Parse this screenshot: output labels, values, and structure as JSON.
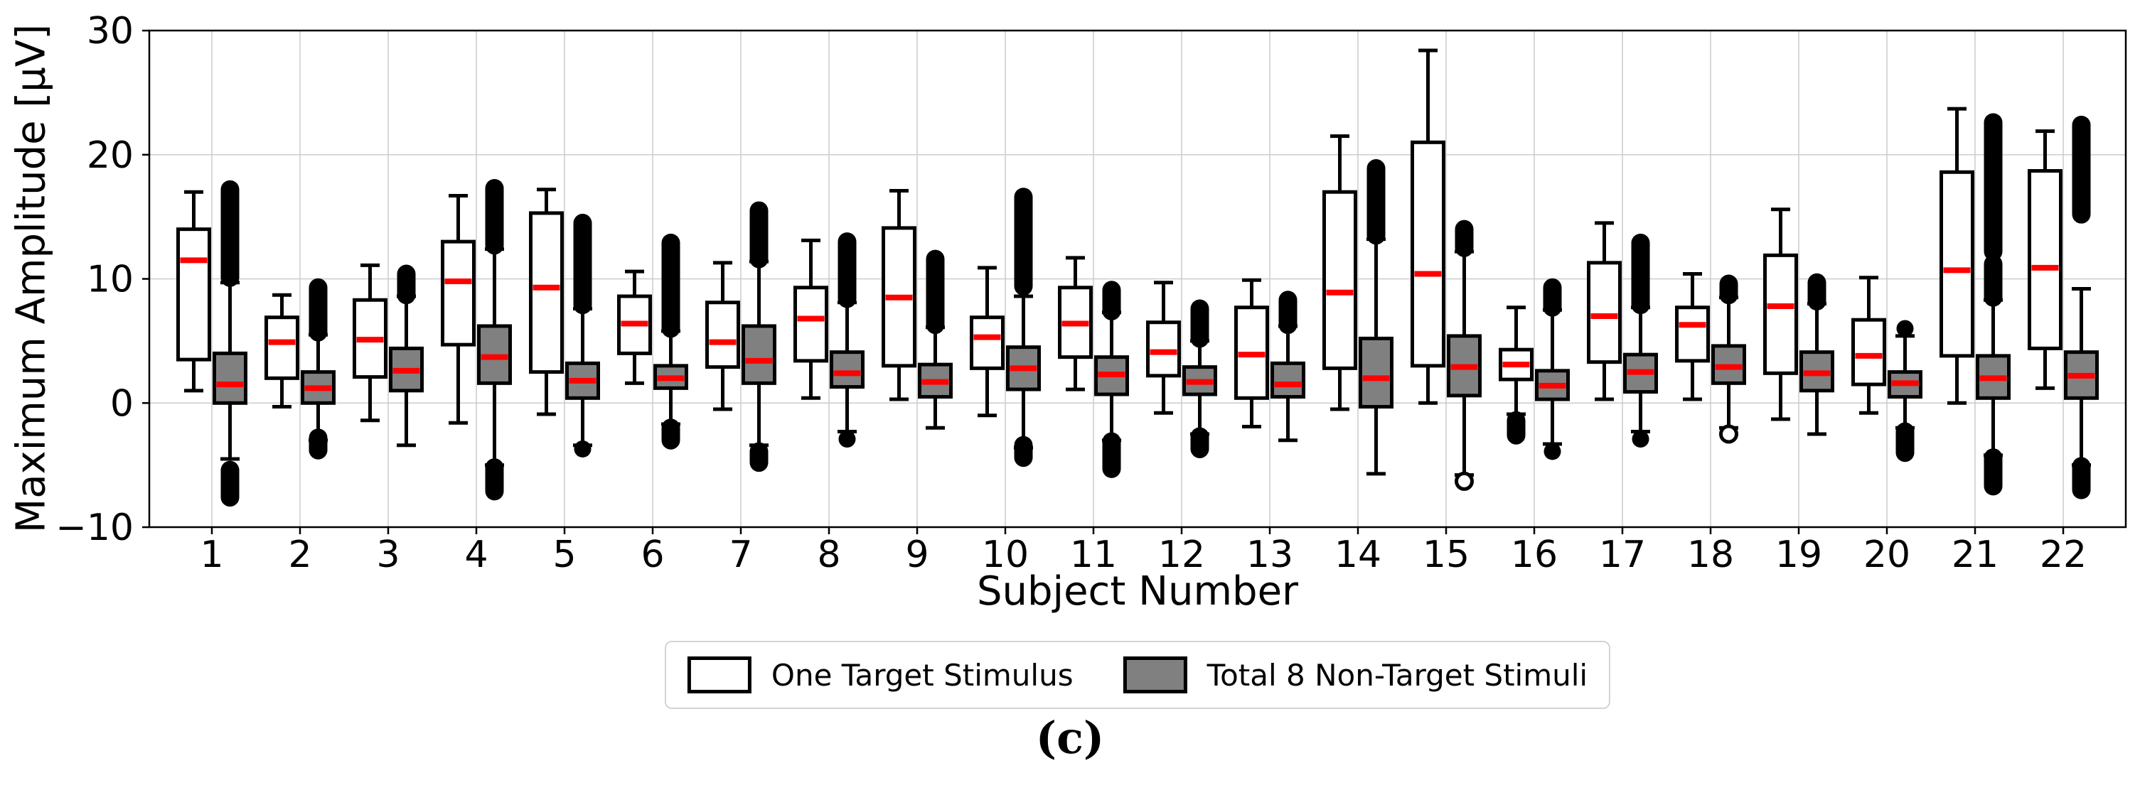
{
  "caption": "(c)",
  "chart_data": {
    "type": "boxplot",
    "title": "",
    "xlabel": "Subject Number",
    "ylabel": "Maximum Amplitude [μV]",
    "ylim": [
      -10,
      30
    ],
    "yticks": [
      30,
      20,
      10,
      0,
      -10
    ],
    "ytick_labels": [
      "30",
      "20",
      "10",
      "0",
      "−10"
    ],
    "grid": true,
    "legend_position": "below",
    "colors": {
      "median": "#ff0000",
      "target_fill": "#ffffff",
      "nontarget_fill": "#808080",
      "line": "#000000",
      "gridline": "#c8c8c8"
    },
    "categories": [
      "1",
      "2",
      "3",
      "4",
      "5",
      "6",
      "7",
      "8",
      "9",
      "10",
      "11",
      "12",
      "13",
      "14",
      "15",
      "16",
      "17",
      "18",
      "19",
      "20",
      "21",
      "22"
    ],
    "series": [
      {
        "name": "One Target Stimulus",
        "fill": "#ffffff",
        "stats": [
          {
            "box": [
              1.0,
              3.5,
              11.5,
              14.0,
              17.0
            ],
            "fliers": []
          },
          {
            "box": [
              -0.3,
              2.0,
              4.9,
              6.9,
              8.7
            ],
            "fliers": []
          },
          {
            "box": [
              -1.4,
              2.1,
              5.1,
              8.3,
              11.1
            ],
            "fliers": []
          },
          {
            "box": [
              -1.6,
              4.7,
              9.8,
              13.0,
              16.7
            ],
            "fliers": []
          },
          {
            "box": [
              -0.9,
              2.5,
              9.3,
              15.3,
              17.2
            ],
            "fliers": []
          },
          {
            "box": [
              1.6,
              4.0,
              6.4,
              8.6,
              10.6
            ],
            "fliers": []
          },
          {
            "box": [
              -0.5,
              2.9,
              4.9,
              8.1,
              11.3
            ],
            "fliers": []
          },
          {
            "box": [
              0.4,
              3.4,
              6.8,
              9.3,
              13.1
            ],
            "fliers": []
          },
          {
            "box": [
              0.3,
              3.0,
              8.5,
              14.1,
              17.1
            ],
            "fliers": []
          },
          {
            "box": [
              -1.0,
              2.8,
              5.3,
              6.9,
              10.9
            ],
            "fliers": []
          },
          {
            "box": [
              1.1,
              3.7,
              6.4,
              9.3,
              11.7
            ],
            "fliers": []
          },
          {
            "box": [
              -0.8,
              2.2,
              4.1,
              6.5,
              9.7
            ],
            "fliers": []
          },
          {
            "box": [
              -1.9,
              0.4,
              3.9,
              7.7,
              9.9
            ],
            "fliers": []
          },
          {
            "box": [
              -0.5,
              2.8,
              8.9,
              17.0,
              21.5
            ],
            "fliers": []
          },
          {
            "box": [
              0.0,
              3.0,
              10.4,
              21.0,
              28.4
            ],
            "fliers": []
          },
          {
            "box": [
              -0.9,
              1.9,
              3.1,
              4.3,
              7.7
            ],
            "fliers": [
              [
                -2.6,
                -1.4,
                0
              ]
            ]
          },
          {
            "box": [
              0.3,
              3.3,
              7.0,
              11.3,
              14.5
            ],
            "fliers": []
          },
          {
            "box": [
              0.3,
              3.4,
              6.3,
              7.7,
              10.4
            ],
            "fliers": []
          },
          {
            "box": [
              -1.3,
              2.4,
              7.8,
              11.9,
              15.6
            ],
            "fliers": []
          },
          {
            "box": [
              -0.8,
              1.5,
              3.8,
              6.7,
              10.1
            ],
            "fliers": []
          },
          {
            "box": [
              0.0,
              3.8,
              10.7,
              18.6,
              23.7
            ],
            "fliers": []
          },
          {
            "box": [
              1.2,
              4.4,
              10.9,
              18.7,
              21.9
            ],
            "fliers": []
          }
        ]
      },
      {
        "name": "Total 8 Non-Target Stimuli",
        "fill": "#808080",
        "stats": [
          {
            "box": [
              -4.5,
              0.0,
              1.5,
              4.0,
              9.7
            ],
            "fliers": [
              [
                10.1,
                17.2,
                0
              ],
              [
                -7.6,
                -5.4,
                0
              ]
            ]
          },
          {
            "box": [
              -3.0,
              0.0,
              1.2,
              2.5,
              5.5
            ],
            "fliers": [
              [
                5.7,
                9.3,
                0
              ],
              [
                -3.8,
                -2.8,
                0
              ]
            ]
          },
          {
            "box": [
              -3.4,
              1.0,
              2.6,
              4.4,
              8.6
            ],
            "fliers": [
              [
                8.7,
                10.4,
                0
              ]
            ]
          },
          {
            "box": [
              -5.0,
              1.6,
              3.7,
              6.2,
              12.4
            ],
            "fliers": [
              [
                12.7,
                17.3,
                0
              ],
              [
                -7.1,
                -5.2,
                0
              ]
            ]
          },
          {
            "box": [
              -3.4,
              0.4,
              1.8,
              3.2,
              7.6
            ],
            "fliers": [
              [
                7.9,
                14.5,
                0
              ],
              [
                -3.7,
                -3.7,
                0
              ]
            ]
          },
          {
            "box": [
              -1.7,
              1.2,
              2.0,
              3.0,
              5.8
            ],
            "fliers": [
              [
                6.0,
                12.9,
                0
              ],
              [
                -3.0,
                -2.0,
                0
              ]
            ]
          },
          {
            "box": [
              -3.4,
              1.6,
              3.4,
              6.2,
              11.4
            ],
            "fliers": [
              [
                11.6,
                15.5,
                0
              ],
              [
                -4.8,
                -3.9,
                0
              ]
            ]
          },
          {
            "box": [
              -2.3,
              1.3,
              2.4,
              4.1,
              8.1
            ],
            "fliers": [
              [
                8.4,
                13.0,
                0
              ],
              [
                -3.2,
                -2.6,
                0
              ]
            ]
          },
          {
            "box": [
              -2.0,
              0.5,
              1.7,
              3.1,
              6.1
            ],
            "fliers": [
              [
                6.3,
                11.6,
                0
              ]
            ]
          },
          {
            "box": [
              -3.6,
              1.1,
              2.8,
              4.5,
              8.6
            ],
            "fliers": [
              [
                9.4,
                16.6,
                0
              ],
              [
                -4.4,
                -3.4,
                0
              ]
            ]
          },
          {
            "box": [
              -3.0,
              0.7,
              2.3,
              3.7,
              7.3
            ],
            "fliers": [
              [
                7.4,
                9.1,
                0
              ],
              [
                -5.3,
                -3.1,
                0
              ]
            ]
          },
          {
            "box": [
              -2.5,
              0.7,
              1.7,
              2.9,
              5.0
            ],
            "fliers": [
              [
                5.2,
                7.6,
                0
              ],
              [
                -3.7,
                -2.7,
                0
              ]
            ]
          },
          {
            "box": [
              -3.0,
              0.5,
              1.5,
              3.2,
              6.2
            ],
            "fliers": [
              [
                6.3,
                8.3,
                0
              ]
            ]
          },
          {
            "box": [
              -5.7,
              -0.3,
              2.0,
              5.2,
              13.2
            ],
            "fliers": [
              [
                13.5,
                18.9,
                0
              ]
            ]
          },
          {
            "box": [
              -5.8,
              0.6,
              2.9,
              5.4,
              12.2
            ],
            "fliers": [
              [
                12.5,
                14.0,
                0
              ],
              [
                -6.3,
                -6.3,
                1
              ]
            ]
          },
          {
            "box": [
              -3.3,
              0.3,
              1.4,
              2.6,
              7.5
            ],
            "fliers": [
              [
                7.7,
                9.3,
                0
              ],
              [
                -4.2,
                -3.6,
                0
              ]
            ]
          },
          {
            "box": [
              -2.3,
              0.9,
              2.5,
              3.9,
              7.7
            ],
            "fliers": [
              [
                7.9,
                12.9,
                0
              ],
              [
                -2.9,
                -2.9,
                0
              ]
            ]
          },
          {
            "box": [
              -2.0,
              1.6,
              2.9,
              4.6,
              8.5
            ],
            "fliers": [
              [
                8.7,
                9.6,
                0
              ],
              [
                -2.5,
                -2.5,
                1
              ]
            ]
          },
          {
            "box": [
              -2.5,
              1.0,
              2.4,
              4.1,
              8.0
            ],
            "fliers": [
              [
                8.2,
                9.7,
                0
              ]
            ]
          },
          {
            "box": [
              -2.0,
              0.5,
              1.6,
              2.5,
              5.4
            ],
            "fliers": [
              [
                5.7,
                6.3,
                0
              ],
              [
                -4.0,
                -2.3,
                0
              ]
            ]
          },
          {
            "box": [
              -4.2,
              0.4,
              2.0,
              3.8,
              8.3
            ],
            "fliers": [
              [
                12.2,
                22.6,
                0
              ],
              [
                8.5,
                11.2,
                0
              ],
              [
                -6.7,
                -4.4,
                0
              ]
            ]
          },
          {
            "box": [
              -5.0,
              0.4,
              2.2,
              4.1,
              9.2
            ],
            "fliers": [
              [
                15.2,
                22.4,
                0
              ],
              [
                -7.0,
                -5.1,
                0
              ]
            ]
          }
        ]
      }
    ]
  }
}
